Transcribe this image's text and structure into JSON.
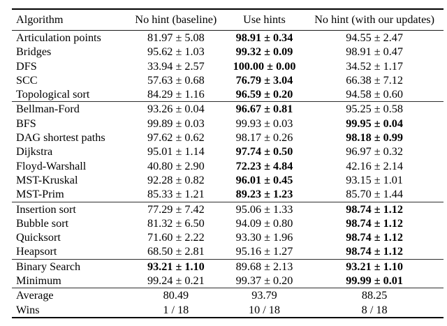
{
  "table": {
    "header": {
      "columns": [
        "Algorithm",
        "No hint (baseline)",
        "Use hints",
        "No hint (with our updates)"
      ]
    },
    "sections": [
      {
        "rows": [
          {
            "algorithm": "Articulation points",
            "values": [
              "81.97 ± 5.08",
              "98.91 ± 0.34",
              "94.55 ± 2.47"
            ],
            "bold": [
              false,
              true,
              false
            ]
          },
          {
            "algorithm": "Bridges",
            "values": [
              "95.62 ± 1.03",
              "99.32 ± 0.09",
              "98.91 ± 0.47"
            ],
            "bold": [
              false,
              true,
              false
            ]
          },
          {
            "algorithm": "DFS",
            "values": [
              "33.94 ± 2.57",
              "100.00 ± 0.00",
              "34.52 ± 1.17"
            ],
            "bold": [
              false,
              true,
              false
            ]
          },
          {
            "algorithm": "SCC",
            "values": [
              "57.63 ± 0.68",
              "76.79 ± 3.04",
              "66.38 ± 7.12"
            ],
            "bold": [
              false,
              true,
              false
            ]
          },
          {
            "algorithm": "Topological sort",
            "values": [
              "84.29 ± 1.16",
              "96.59 ± 0.20",
              "94.58 ± 0.60"
            ],
            "bold": [
              false,
              true,
              false
            ]
          }
        ]
      },
      {
        "rows": [
          {
            "algorithm": "Bellman-Ford",
            "values": [
              "93.26 ± 0.04",
              "96.67 ± 0.81",
              "95.25 ± 0.58"
            ],
            "bold": [
              false,
              true,
              false
            ]
          },
          {
            "algorithm": "BFS",
            "values": [
              "99.89 ± 0.03",
              "99.93 ± 0.03",
              "99.95 ± 0.04"
            ],
            "bold": [
              false,
              false,
              true
            ]
          },
          {
            "algorithm": "DAG shortest paths",
            "values": [
              "97.62 ± 0.62",
              "98.17 ± 0.26",
              "98.18 ± 0.99"
            ],
            "bold": [
              false,
              false,
              true
            ]
          },
          {
            "algorithm": "Dijkstra",
            "values": [
              "95.01 ± 1.14",
              "97.74 ± 0.50",
              "96.97 ± 0.32"
            ],
            "bold": [
              false,
              true,
              false
            ]
          },
          {
            "algorithm": "Floyd-Warshall",
            "values": [
              "40.80 ± 2.90",
              "72.23 ± 4.84",
              "42.16 ± 2.14"
            ],
            "bold": [
              false,
              true,
              false
            ]
          },
          {
            "algorithm": "MST-Kruskal",
            "values": [
              "92.28 ± 0.82",
              "96.01 ± 0.45",
              "93.15 ± 1.01"
            ],
            "bold": [
              false,
              true,
              false
            ]
          },
          {
            "algorithm": "MST-Prim",
            "values": [
              "85.33 ± 1.21",
              "89.23 ± 1.23",
              "85.70 ± 1.44"
            ],
            "bold": [
              false,
              true,
              false
            ]
          }
        ]
      },
      {
        "rows": [
          {
            "algorithm": "Insertion sort",
            "values": [
              "77.29 ± 7.42",
              "95.06 ± 1.33",
              "98.74 ± 1.12"
            ],
            "bold": [
              false,
              false,
              true
            ]
          },
          {
            "algorithm": "Bubble sort",
            "values": [
              "81.32 ± 6.50",
              "94.09 ± 0.80",
              "98.74 ± 1.12"
            ],
            "bold": [
              false,
              false,
              true
            ]
          },
          {
            "algorithm": "Quicksort",
            "values": [
              "71.60 ± 2.22",
              "93.30 ± 1.96",
              "98.74 ± 1.12"
            ],
            "bold": [
              false,
              false,
              true
            ]
          },
          {
            "algorithm": "Heapsort",
            "values": [
              "68.50 ± 2.81",
              "95.16 ± 1.27",
              "98.74 ± 1.12"
            ],
            "bold": [
              false,
              false,
              true
            ]
          }
        ]
      },
      {
        "rows": [
          {
            "algorithm": "Binary Search",
            "values": [
              "93.21 ± 1.10",
              "89.68 ± 2.13",
              "93.21 ± 1.10"
            ],
            "bold": [
              true,
              false,
              true
            ]
          },
          {
            "algorithm": "Minimum",
            "values": [
              "99.24 ± 0.21",
              "99.37 ± 0.20",
              "99.99 ± 0.01"
            ],
            "bold": [
              false,
              false,
              true
            ]
          }
        ]
      },
      {
        "rows": [
          {
            "algorithm": "Average",
            "values": [
              "80.49",
              "93.79",
              "88.25"
            ],
            "bold": [
              false,
              false,
              false
            ]
          },
          {
            "algorithm": "Wins",
            "values": [
              "1 / 18",
              "10 / 18",
              "8 / 18"
            ],
            "bold": [
              false,
              false,
              false
            ]
          }
        ]
      }
    ]
  }
}
